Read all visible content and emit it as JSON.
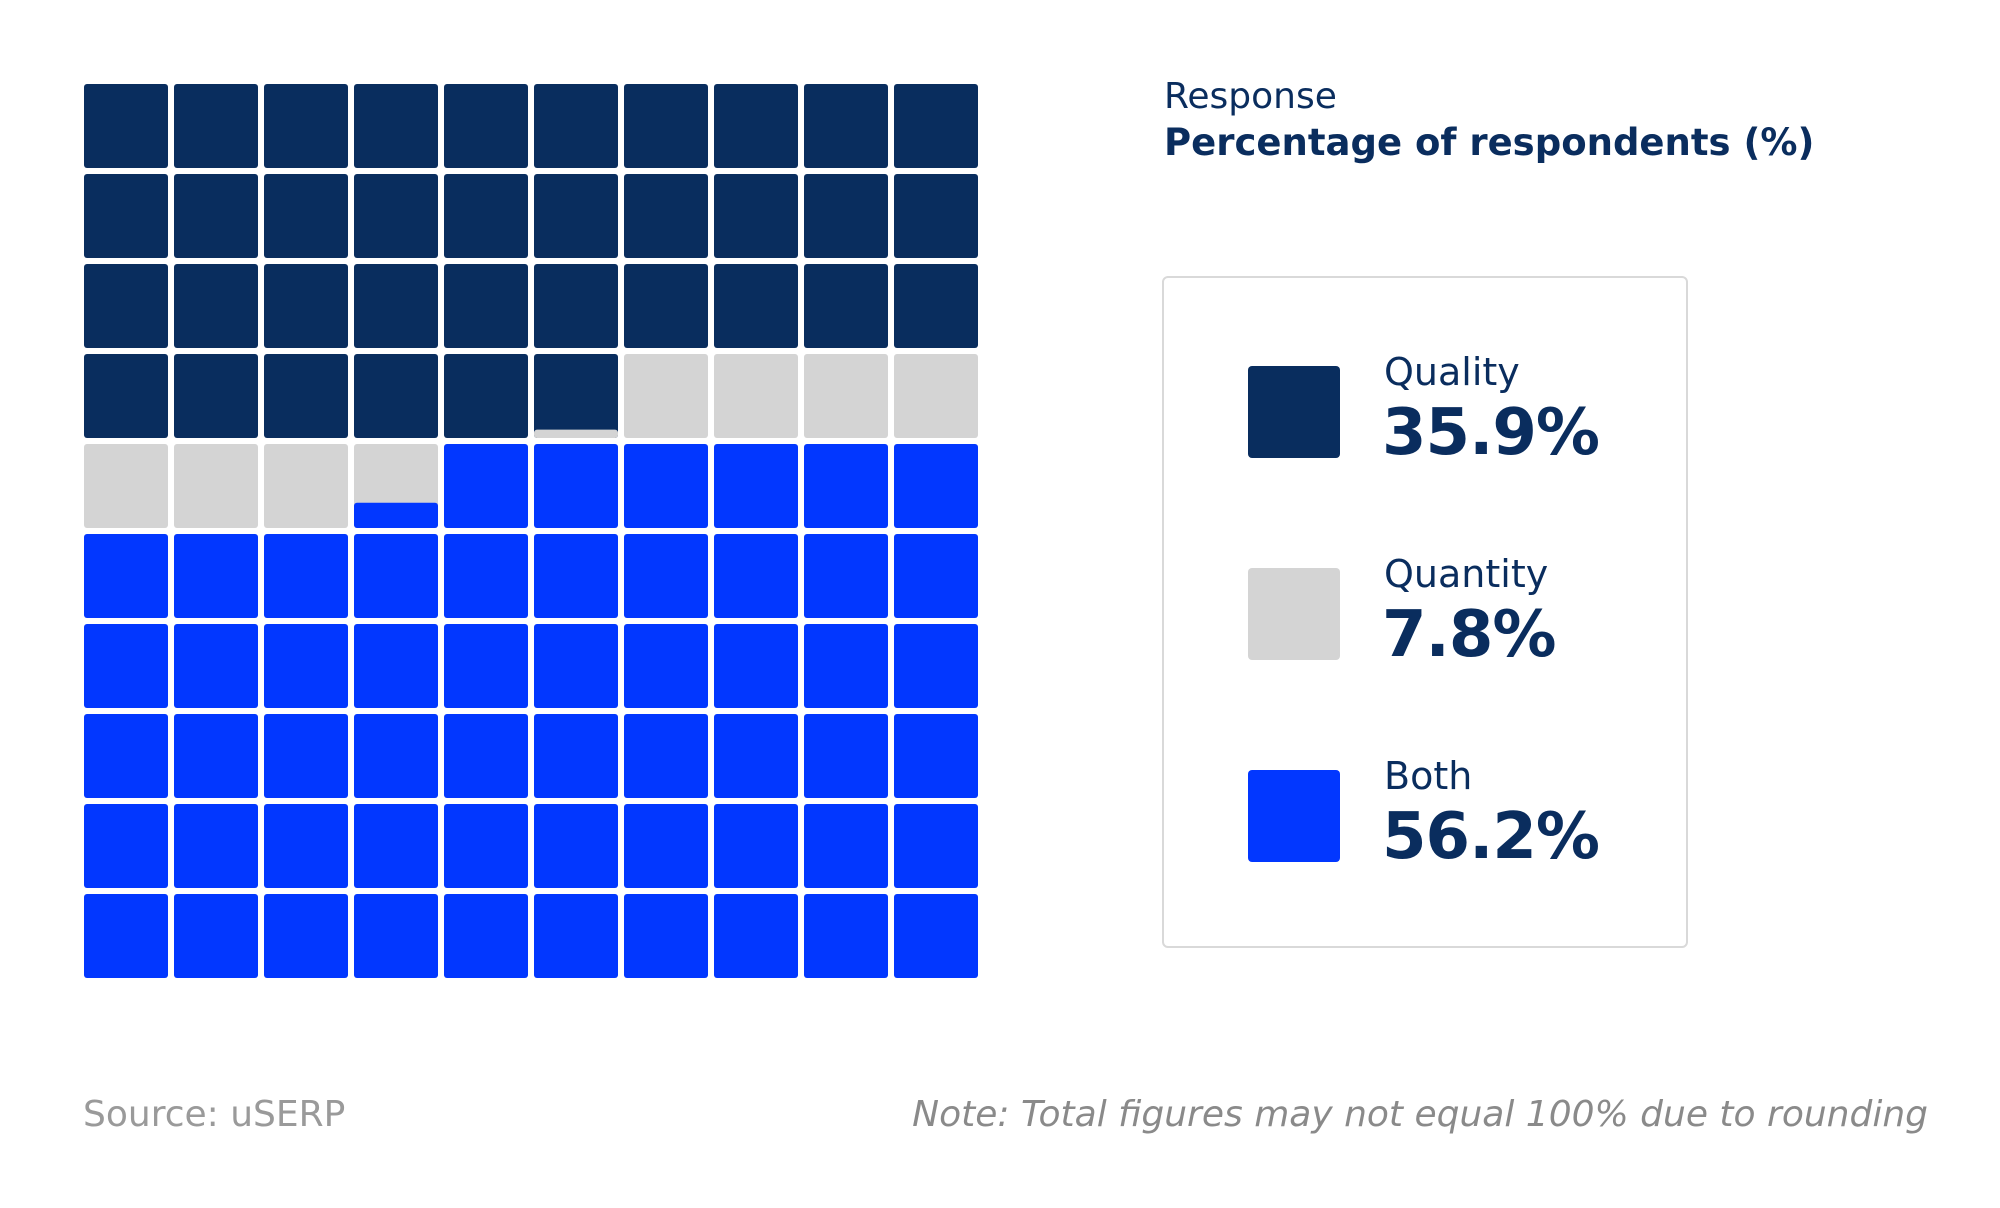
{
  "chart_data": {
    "type": "waffle",
    "subtitle": "Response",
    "title": "Percentage of respondents (%)",
    "categories": [
      "Quality",
      "Quantity",
      "Both"
    ],
    "values": [
      35.9,
      7.8,
      56.2
    ],
    "value_labels": [
      "35.9%",
      "7.8%",
      "56.2%"
    ],
    "colors": [
      "#092d5e",
      "#d4d4d4",
      "#0237ff"
    ],
    "grid": "10x10",
    "source": "Source: uSERP",
    "note": "Note: Total figures may not equal 100% due to rounding"
  }
}
